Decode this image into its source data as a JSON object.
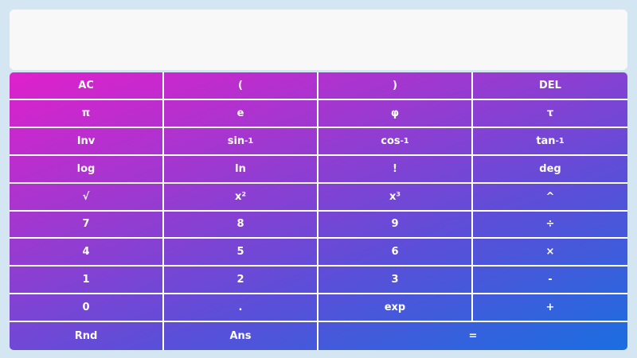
{
  "display": {
    "value": ""
  },
  "keys": [
    [
      "AC",
      "(",
      ")",
      "DEL"
    ],
    [
      "π",
      "e",
      "φ",
      "τ"
    ],
    [
      "Inv",
      "sin-1",
      "cos-1",
      "tan-1"
    ],
    [
      "log",
      "ln",
      "!",
      "deg"
    ],
    [
      "√",
      "x²",
      "x³",
      "^"
    ],
    [
      "7",
      "8",
      "9",
      "÷"
    ],
    [
      "4",
      "5",
      "6",
      "×"
    ],
    [
      "1",
      "2",
      "3",
      "-"
    ],
    [
      "0",
      ".",
      "exp",
      "+"
    ],
    [
      "Rnd",
      "Ans",
      "="
    ]
  ]
}
